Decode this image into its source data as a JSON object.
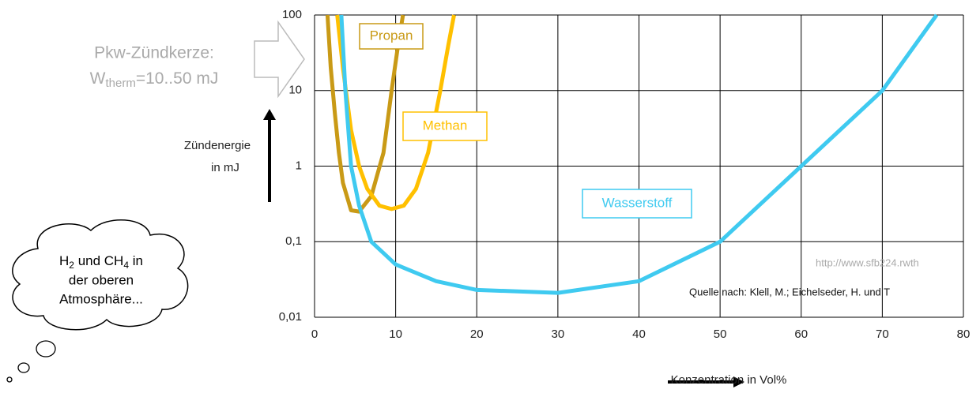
{
  "chart_data": {
    "type": "line",
    "ylog": true,
    "grid": true,
    "xlim": [
      0,
      80
    ],
    "ylim": [
      0.01,
      100
    ],
    "xticks": [
      0,
      10,
      20,
      30,
      40,
      50,
      60,
      70,
      80
    ],
    "yticks": [
      {
        "value": 0.01,
        "label": "0,01"
      },
      {
        "value": 0.1,
        "label": "0,1"
      },
      1,
      10,
      100
    ],
    "y_label_lines": [
      "Zündenergie",
      "in mJ"
    ],
    "x_label": "Konzentration in Vol%",
    "series": [
      {
        "name": "Propan",
        "color": "#c99a16",
        "x": [
          1.6,
          2.0,
          2.5,
          3.0,
          3.5,
          4.5,
          5.5,
          7.0,
          8.5,
          9.5,
          10.3,
          10.9
        ],
        "values": [
          100,
          20,
          5,
          1.5,
          0.6,
          0.26,
          0.25,
          0.4,
          1.5,
          10,
          40,
          100
        ]
      },
      {
        "name": "Methan",
        "color": "#ffc000",
        "x": [
          2.8,
          3.5,
          4.5,
          5.5,
          6.5,
          8.0,
          9.5,
          11.0,
          12.5,
          14.0,
          15.5,
          16.5,
          17.2
        ],
        "values": [
          100,
          20,
          3,
          1,
          0.5,
          0.3,
          0.27,
          0.3,
          0.5,
          1.5,
          10,
          40,
          100
        ]
      },
      {
        "name": "Wasserstoff",
        "color": "#3fcaf0",
        "x": [
          3.3,
          3.8,
          4.5,
          5.5,
          7.0,
          10,
          15,
          20,
          30,
          40,
          50,
          60,
          70,
          76.7
        ],
        "values": [
          100,
          10,
          1,
          0.3,
          0.1,
          0.05,
          0.03,
          0.023,
          0.021,
          0.03,
          0.1,
          1,
          10,
          100
        ]
      }
    ],
    "spark_plug": {
      "line1": "Pkw-Zündkerze:",
      "symbol": "W",
      "subscript": "therm",
      "rest": "=10..50 mJ"
    },
    "source_url": "http://www.sfb224.rwth",
    "source": "Quelle nach: Klell, M.; Eichelseder, H. und T",
    "thought": {
      "l1a": "H",
      "l1b": "2",
      "l1c": " und CH",
      "l1d": "4",
      "l1e": " in",
      "l2": "der oberen",
      "l3": "Atmosphäre..."
    }
  }
}
